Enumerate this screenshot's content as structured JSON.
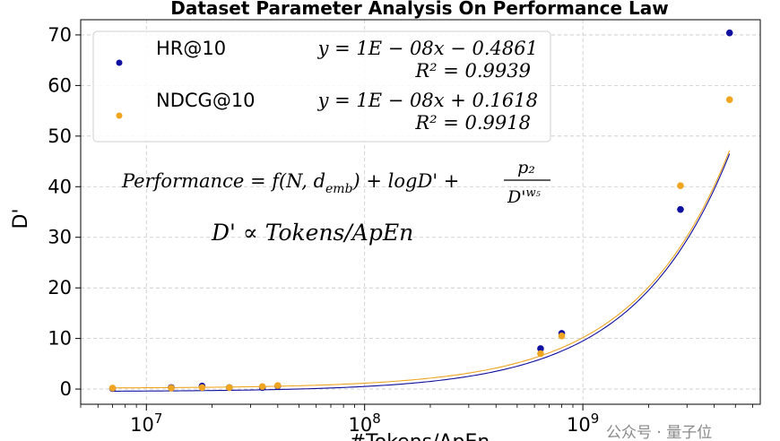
{
  "chart_data": {
    "type": "scatter",
    "title": "Dataset Parameter Analysis On Performance Law",
    "xlabel": "#Tokens/ApEn",
    "ylabel": "D'",
    "xscale": "log",
    "xlim": [
      5000000.0,
      6500000000.0
    ],
    "ylim": [
      -3,
      73
    ],
    "yticks": [
      0,
      10,
      20,
      30,
      40,
      50,
      60,
      70
    ],
    "xticks": [
      {
        "value": 10000000.0,
        "base": "10",
        "exp": "7"
      },
      {
        "value": 100000000.0,
        "base": "10",
        "exp": "8"
      },
      {
        "value": 1000000000.0,
        "base": "10",
        "exp": "9"
      }
    ],
    "grid": true,
    "legend_position": "top-left",
    "series": [
      {
        "name": "HR@10",
        "color": "#1010a0",
        "x": [
          7000000.0,
          13000000.0,
          18000000.0,
          24000000.0,
          34000000.0,
          40000000.0,
          640000000.0,
          800000000.0,
          2800000000.0,
          4700000000.0
        ],
        "y": [
          0.1,
          0.3,
          0.6,
          0.3,
          0.3,
          0.6,
          8.0,
          11.0,
          35.5,
          70.4
        ],
        "fit": {
          "slope": 1e-08,
          "intercept": -0.4861
        },
        "equation": "y = 1E − 08x − 0.4861",
        "r2": "R² = 0.9939"
      },
      {
        "name": "NDCG@10",
        "color": "#f0a520",
        "x": [
          7000000.0,
          13000000.0,
          18000000.0,
          24000000.0,
          34000000.0,
          40000000.0,
          640000000.0,
          800000000.0,
          2800000000.0,
          4700000000.0
        ],
        "y": [
          0.2,
          0.2,
          0.3,
          0.3,
          0.5,
          0.7,
          7.0,
          10.5,
          40.2,
          57.2
        ],
        "fit": {
          "slope": 1e-08,
          "intercept": 0.1618
        },
        "equation": "y = 1E − 08x + 0.1618",
        "r2": "R² = 0.9918"
      }
    ],
    "annotations": {
      "formula1": {
        "lhs": "Performance",
        "rhs_f": "f(N, d",
        "rhs_sub": "emb",
        "rhs_mid": ") + logD' +",
        "frac_num": "p₂",
        "frac_den": "D'",
        "frac_den_sup": "w₅"
      },
      "formula2": "D' ∝ Tokens/ApEn"
    }
  },
  "watermark": "公众号 · 量子位"
}
